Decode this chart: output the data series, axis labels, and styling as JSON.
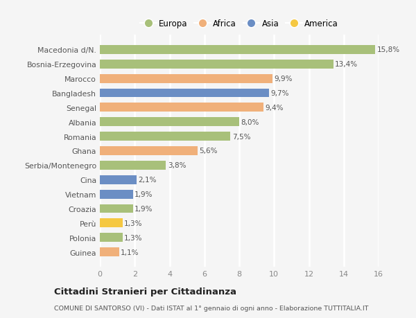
{
  "categories": [
    "Macedonia d/N.",
    "Bosnia-Erzegovina",
    "Marocco",
    "Bangladesh",
    "Senegal",
    "Albania",
    "Romania",
    "Ghana",
    "Serbia/Montenegro",
    "Cina",
    "Vietnam",
    "Croazia",
    "Perù",
    "Polonia",
    "Guinea"
  ],
  "values": [
    15.8,
    13.4,
    9.9,
    9.7,
    9.4,
    8.0,
    7.5,
    5.6,
    3.8,
    2.1,
    1.9,
    1.9,
    1.3,
    1.3,
    1.1
  ],
  "colors": [
    "#a8c07a",
    "#a8c07a",
    "#f0b07a",
    "#6b8ec4",
    "#f0b07a",
    "#a8c07a",
    "#a8c07a",
    "#f0b07a",
    "#a8c07a",
    "#6b8ec4",
    "#6b8ec4",
    "#a8c07a",
    "#f5c842",
    "#a8c07a",
    "#f0b07a"
  ],
  "labels": [
    "15,8%",
    "13,4%",
    "9,9%",
    "9,7%",
    "9,4%",
    "8,0%",
    "7,5%",
    "5,6%",
    "3,8%",
    "2,1%",
    "1,9%",
    "1,9%",
    "1,3%",
    "1,3%",
    "1,1%"
  ],
  "legend": [
    {
      "label": "Europa",
      "color": "#a8c07a"
    },
    {
      "label": "Africa",
      "color": "#f0b07a"
    },
    {
      "label": "Asia",
      "color": "#6b8ec4"
    },
    {
      "label": "America",
      "color": "#f5c842"
    }
  ],
  "title": "Cittadini Stranieri per Cittadinanza",
  "subtitle": "COMUNE DI SANTORSO (VI) - Dati ISTAT al 1° gennaio di ogni anno - Elaborazione TUTTITALIA.IT",
  "xlim": [
    0,
    16
  ],
  "xticks": [
    0,
    2,
    4,
    6,
    8,
    10,
    12,
    14,
    16
  ],
  "bg_color": "#f5f5f5",
  "grid_color": "#ffffff",
  "bar_height": 0.62
}
